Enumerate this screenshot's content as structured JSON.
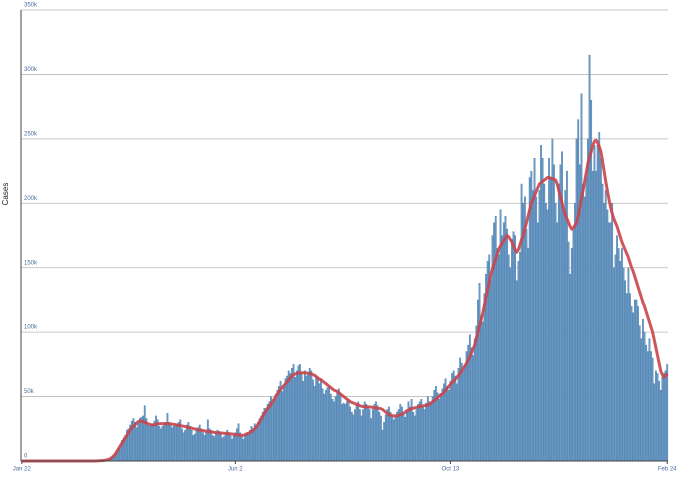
{
  "chart_data": {
    "type": "bar",
    "y_label": "Cases",
    "categories": [
      "Jan 22",
      null,
      null,
      null,
      null,
      null,
      null,
      null,
      null,
      null,
      null,
      null,
      null,
      null,
      null,
      null,
      null,
      null,
      null,
      null,
      null,
      null,
      null,
      null,
      null,
      null,
      null,
      null,
      null,
      null,
      null,
      null,
      null,
      null,
      null,
      null,
      null,
      null,
      null,
      null,
      null,
      null,
      null,
      null,
      null,
      null,
      null,
      null,
      null,
      null,
      null,
      null,
      null,
      null,
      null,
      null,
      null,
      null,
      null,
      null,
      null,
      null,
      null,
      null,
      null,
      null,
      null,
      null,
      null,
      null,
      null,
      null,
      null,
      null,
      null,
      null,
      null,
      null,
      null,
      null,
      null,
      null,
      null,
      null,
      null,
      null,
      null,
      null,
      null,
      null,
      null,
      null,
      null,
      null,
      null,
      null,
      null,
      null,
      null,
      null,
      null,
      null,
      null,
      null,
      null,
      null,
      null,
      null,
      null,
      null,
      null,
      null,
      null,
      null,
      null,
      null,
      null,
      null,
      null,
      null,
      null,
      null,
      null,
      null,
      null,
      null,
      null,
      null,
      null,
      null,
      null,
      null,
      "Jun 2",
      null,
      null,
      null,
      null,
      null,
      null,
      null,
      null,
      null,
      null,
      null,
      null,
      null,
      null,
      null,
      null,
      null,
      null,
      null,
      null,
      null,
      null,
      null,
      null,
      null,
      null,
      null,
      null,
      null,
      null,
      null,
      null,
      null,
      null,
      null,
      null,
      null,
      null,
      null,
      null,
      null,
      null,
      null,
      null,
      null,
      null,
      null,
      null,
      null,
      null,
      null,
      null,
      null,
      null,
      null,
      null,
      null,
      null,
      null,
      null,
      null,
      null,
      null,
      null,
      null,
      null,
      null,
      null,
      null,
      null,
      null,
      null,
      null,
      null,
      null,
      null,
      null,
      null,
      null,
      null,
      null,
      null,
      null,
      null,
      null,
      null,
      null,
      null,
      null,
      null,
      null,
      null,
      null,
      null,
      null,
      null,
      null,
      null,
      null,
      null,
      null,
      null,
      null,
      null,
      null,
      null,
      null,
      null,
      null,
      null,
      null,
      null,
      null,
      null,
      null,
      null,
      null,
      null,
      null,
      null,
      null,
      null,
      null,
      null,
      null,
      null,
      null,
      null,
      null,
      null,
      null,
      null,
      "Oct 13",
      null,
      null,
      null,
      null,
      null,
      null,
      null,
      null,
      null,
      null,
      null,
      null,
      null,
      null,
      null,
      null,
      null,
      null,
      null,
      null,
      null,
      null,
      null,
      null,
      null,
      null,
      null,
      null,
      null,
      null,
      null,
      null,
      null,
      null,
      null,
      null,
      null,
      null,
      null,
      null,
      null,
      null,
      null,
      null,
      null,
      null,
      null,
      null,
      null,
      null,
      null,
      null,
      null,
      null,
      null,
      null,
      null,
      null,
      null,
      null,
      null,
      null,
      null,
      null,
      null,
      null,
      null,
      null,
      null,
      null,
      null,
      null,
      null,
      null,
      null,
      null,
      null,
      null,
      null,
      null,
      null,
      null,
      null,
      null,
      null,
      null,
      null,
      null,
      null,
      null,
      null,
      null,
      null,
      null,
      null,
      null,
      null,
      null,
      null,
      null,
      null,
      null,
      null,
      null,
      null,
      null,
      null,
      null,
      null,
      null,
      null,
      null,
      null,
      null,
      null,
      null,
      null,
      null,
      null,
      null,
      null,
      null,
      null,
      null,
      null,
      null,
      null,
      null,
      null,
      null,
      null,
      null,
      null,
      "Feb 24"
    ],
    "series": [
      {
        "type": "bar",
        "color": "#6a9bc8",
        "values": [
          0,
          0,
          0,
          0,
          0,
          0,
          0,
          0,
          0,
          0,
          0,
          0,
          0,
          0,
          0,
          0,
          0,
          0,
          0,
          0,
          0,
          0,
          0,
          0,
          0,
          0,
          0,
          0,
          0,
          0,
          0,
          0,
          0,
          0,
          0,
          0,
          0,
          0,
          0,
          0,
          20,
          30,
          40,
          60,
          70,
          100,
          150,
          200,
          300,
          400,
          500,
          700,
          900,
          1200,
          1800,
          2500,
          3500,
          4500,
          6000,
          8000,
          10000,
          12000,
          16000,
          18000,
          20000,
          24000,
          25000,
          28000,
          31000,
          33000,
          30000,
          26000,
          30000,
          33000,
          34000,
          35000,
          43000,
          33000,
          28000,
          27000,
          28000,
          29000,
          31000,
          35000,
          32000,
          27000,
          25000,
          27000,
          28000,
          30000,
          37000,
          30000,
          28000,
          26000,
          27000,
          28000,
          29000,
          30000,
          32000,
          25000,
          22000,
          24000,
          28000,
          30000,
          27000,
          24000,
          20000,
          21000,
          24000,
          26000,
          28000,
          25000,
          22000,
          20000,
          22000,
          32000,
          25000,
          24000,
          20000,
          19000,
          22000,
          24000,
          23000,
          22000,
          18000,
          19000,
          21000,
          24000,
          22000,
          20000,
          17000,
          20000,
          22000,
          25000,
          29000,
          22000,
          19000,
          17000,
          20000,
          22000,
          21000,
          24000,
          27000,
          25000,
          29000,
          27000,
          30000,
          33000,
          35000,
          38000,
          41000,
          40000,
          44000,
          46000,
          50000,
          45000,
          48000,
          52000,
          55000,
          58000,
          62000,
          54000,
          58000,
          64000,
          66000,
          70000,
          68000,
          72000,
          75000,
          65000,
          70000,
          74000,
          75000,
          68000,
          62000,
          70000,
          66000,
          68000,
          72000,
          70000,
          63000,
          58000,
          66000,
          65000,
          60000,
          64000,
          56000,
          52000,
          55000,
          57000,
          58000,
          52000,
          48000,
          46000,
          50000,
          54000,
          56000,
          52000,
          44000,
          45000,
          44000,
          46000,
          48000,
          42000,
          38000,
          36000,
          40000,
          44000,
          46000,
          40000,
          35000,
          40000,
          46000,
          44000,
          42000,
          40000,
          33000,
          40000,
          44000,
          46000,
          43000,
          38000,
          35000,
          24000,
          30000,
          36000,
          40000,
          42000,
          38000,
          34000,
          32000,
          35000,
          38000,
          40000,
          44000,
          42000,
          36000,
          34000,
          38000,
          46000,
          42000,
          48000,
          38000,
          35000,
          40000,
          44000,
          46000,
          48000,
          42000,
          40000,
          45000,
          50000,
          46000,
          44000,
          50000,
          55000,
          58000,
          53000,
          48000,
          52000,
          56000,
          60000,
          64000,
          58000,
          55000,
          62000,
          68000,
          70000,
          66000,
          60000,
          72000,
          80000,
          76000,
          70000,
          74000,
          85000,
          90000,
          98000,
          88000,
          82000,
          95000,
          105000,
          125000,
          138000,
          112000,
          108000,
          130000,
          145000,
          155000,
          160000,
          140000,
          175000,
          185000,
          190000,
          165000,
          160000,
          195000,
          175000,
          185000,
          190000,
          180000,
          160000,
          150000,
          172000,
          178000,
          175000,
          140000,
          155000,
          162000,
          215000,
          200000,
          205000,
          180000,
          165000,
          220000,
          225000,
          210000,
          235000,
          205000,
          185000,
          210000,
          245000,
          235000,
          215000,
          200000,
          195000,
          235000,
          220000,
          250000,
          230000,
          200000,
          185000,
          215000,
          230000,
          240000,
          195000,
          210000,
          225000,
          170000,
          145000,
          165000,
          180000,
          200000,
          250000,
          265000,
          230000,
          285000,
          215000,
          205000,
          220000,
          250000,
          315000,
          280000,
          225000,
          245000,
          225000,
          245000,
          255000,
          235000,
          215000,
          200000,
          210000,
          195000,
          185000,
          185000,
          200000,
          150000,
          160000,
          175000,
          165000,
          155000,
          165000,
          150000,
          140000,
          130000,
          150000,
          130000,
          120000,
          115000,
          125000,
          125000,
          120000,
          105000,
          95000,
          110000,
          100000,
          90000,
          85000,
          95000,
          85000,
          80000,
          60000,
          70000,
          68000,
          62000,
          55000,
          65000,
          68000,
          70000,
          75000
        ]
      },
      {
        "type": "line",
        "color": "#c9454c",
        "values": [
          0,
          0,
          0,
          0,
          0,
          0,
          0,
          0,
          0,
          0,
          0,
          0,
          0,
          0,
          0,
          0,
          0,
          0,
          0,
          0,
          0,
          0,
          0,
          0,
          0,
          0,
          0,
          0,
          0,
          0,
          0,
          0,
          0,
          0,
          0,
          0,
          0,
          0,
          0,
          0,
          0,
          0,
          0,
          0,
          0,
          50,
          80,
          120,
          180,
          250,
          350,
          500,
          700,
          1000,
          1400,
          2000,
          3000,
          4200,
          5800,
          7800,
          10000,
          12000,
          14000,
          16000,
          18000,
          20000,
          22000,
          24000,
          26000,
          27000,
          28000,
          29500,
          30500,
          31000,
          31000,
          30500,
          30000,
          29500,
          29000,
          28500,
          28000,
          28000,
          28200,
          28500,
          28800,
          29000,
          29000,
          29000,
          29000,
          29000,
          29000,
          29000,
          28800,
          28600,
          28400,
          28200,
          28000,
          27800,
          27500,
          27200,
          27000,
          26700,
          26400,
          26100,
          25800,
          25500,
          25200,
          24900,
          24600,
          24300,
          24000,
          23800,
          23600,
          23400,
          23200,
          23000,
          22800,
          22600,
          22400,
          22200,
          22000,
          21900,
          21800,
          21700,
          21600,
          21500,
          21400,
          21300,
          21200,
          21100,
          21000,
          20800,
          20600,
          20400,
          20200,
          20000,
          20000,
          20000,
          20500,
          21000,
          21500,
          22000,
          23000,
          24000,
          25000,
          26500,
          28500,
          30500,
          32500,
          35000,
          37000,
          39000,
          41000,
          42000,
          44000,
          46000,
          48000,
          50000,
          52000,
          54000,
          55500,
          57000,
          58500,
          60000,
          61500,
          63000,
          64500,
          66000,
          67000,
          67500,
          68000,
          68200,
          68400,
          68500,
          68500,
          68400,
          68300,
          68200,
          68000,
          67500,
          67000,
          66500,
          65500,
          64500,
          63500,
          63000,
          62000,
          61000,
          60000,
          59000,
          58000,
          57000,
          56000,
          55000,
          54500,
          54000,
          53000,
          52000,
          51000,
          50000,
          49000,
          48000,
          47000,
          46000,
          45500,
          45000,
          44500,
          44000,
          43500,
          43000,
          42500,
          42300,
          42100,
          42000,
          42000,
          42000,
          41800,
          41600,
          41400,
          41200,
          41000,
          40800,
          40600,
          40000,
          39000,
          38000,
          37000,
          36000,
          35500,
          35200,
          35000,
          35000,
          35000,
          35500,
          36000,
          36500,
          37000,
          38000,
          39000,
          39500,
          40000,
          40500,
          41000,
          41300,
          41600,
          42000,
          42300,
          42600,
          42800,
          43000,
          43000,
          43500,
          44000,
          45000,
          46000,
          47000,
          48000,
          49000,
          50500,
          51500,
          52000,
          53500,
          55000,
          56500,
          58000,
          59500,
          61000,
          62000,
          63500,
          65000,
          66500,
          68000,
          70000,
          72000,
          74000,
          76000,
          78500,
          81000,
          84000,
          87000,
          90000,
          95000,
          100000,
          105000,
          110000,
          115000,
          121000,
          127000,
          133000,
          139000,
          145000,
          149000,
          153000,
          157000,
          161000,
          165000,
          167000,
          169000,
          171000,
          173000,
          175000,
          174000,
          172000,
          170000,
          167000,
          164000,
          162000,
          164000,
          168000,
          172000,
          175000,
          180000,
          185000,
          190000,
          195000,
          200000,
          203000,
          206000,
          209000,
          212000,
          215000,
          216000,
          217000,
          218000,
          219000,
          220000,
          220000,
          219500,
          219000,
          218500,
          218000,
          215000,
          210000,
          205000,
          200000,
          195000,
          191000,
          188000,
          185000,
          182000,
          180000,
          181000,
          183000,
          185000,
          190000,
          197000,
          204000,
          210000,
          217000,
          224000,
          231000,
          236000,
          240000,
          245000,
          248000,
          249000,
          247000,
          244000,
          240000,
          233000,
          225000,
          217000,
          210000,
          203000,
          197000,
          192000,
          188000,
          185000,
          182000,
          178000,
          174000,
          170000,
          167000,
          164000,
          161000,
          158000,
          154000,
          150000,
          147000,
          143000,
          139000,
          135000,
          131000,
          127000,
          123000,
          120000,
          116000,
          112000,
          108000,
          104000,
          100000,
          94000,
          88000,
          82000,
          76000,
          70000,
          67000,
          65000,
          66000,
          68000
        ]
      }
    ],
    "ylim": [
      0,
      350000
    ],
    "yticks": [
      0,
      {
        "value": 50000,
        "label": "50k"
      },
      {
        "value": 100000,
        "label": "100k"
      },
      {
        "value": 150000,
        "label": "150k"
      },
      {
        "value": 200000,
        "label": "200k"
      },
      {
        "value": 250000,
        "label": "250k"
      },
      {
        "value": 300000,
        "label": "300k"
      },
      {
        "value": 350000,
        "label": "350k"
      }
    ],
    "grid": true
  }
}
